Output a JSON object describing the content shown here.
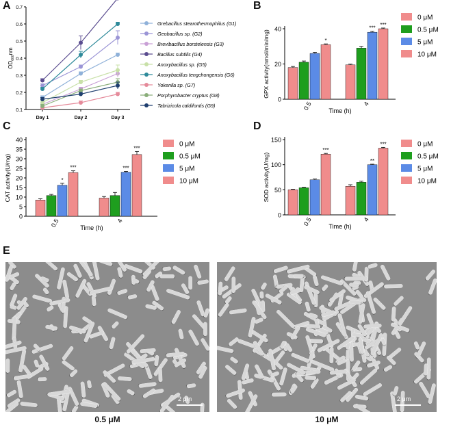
{
  "panels": {
    "A": "A",
    "B": "B",
    "C": "C",
    "D": "D",
    "E": "E"
  },
  "chart_data": [
    {
      "id": "A",
      "type": "line",
      "ylabel_main": "OD",
      "ylabel_sub": "600",
      "ylabel_tail": "nm",
      "categories": [
        "Day 1",
        "Day 2",
        "Day 3"
      ],
      "ylim": [
        0.1,
        0.7
      ],
      "yticks": [
        0.1,
        0.2,
        0.3,
        0.4,
        0.5,
        0.6,
        0.7
      ],
      "legend_position": "right",
      "series": [
        {
          "name": "Grebacillus stearothermophilus (G1)",
          "color": "#8fb1d9",
          "values": [
            0.17,
            0.31,
            0.42
          ],
          "err": [
            0.01,
            0.01,
            0.01
          ]
        },
        {
          "name": "Geobacillus sp. (G2)",
          "color": "#9b95d6",
          "values": [
            0.24,
            0.35,
            0.52
          ],
          "err": [
            0.01,
            0.01,
            0.04
          ]
        },
        {
          "name": "Brevibacillus borstelensis (G3)",
          "color": "#c9a0d6",
          "values": [
            0.13,
            0.22,
            0.31
          ],
          "err": [
            0.01,
            0.01,
            0.02
          ]
        },
        {
          "name": "Bacillus subtilis (G4)",
          "color": "#5a4c8f",
          "values": [
            0.27,
            0.49,
            0.75
          ],
          "err": [
            0.01,
            0.04,
            0.01
          ]
        },
        {
          "name": "Anoxybacillus sp. (G5)",
          "color": "#c8e0a8",
          "values": [
            0.14,
            0.26,
            0.33
          ],
          "err": [
            0.01,
            0.01,
            0.03
          ]
        },
        {
          "name": "Anoxybacillus tengchongensis (G6)",
          "color": "#2e8a9a",
          "values": [
            0.22,
            0.42,
            0.6
          ],
          "err": [
            0.01,
            0.02,
            0.01
          ]
        },
        {
          "name": "Yokenlla sp. (G7)",
          "color": "#e58a9a",
          "values": [
            0.11,
            0.14,
            0.19
          ],
          "err": [
            0.005,
            0.01,
            0.01
          ]
        },
        {
          "name": "Porphyrobacter cryptus (G8)",
          "color": "#8aae7a",
          "values": [
            0.12,
            0.21,
            0.26
          ],
          "err": [
            0.01,
            0.01,
            0.02
          ]
        },
        {
          "name": "Tabrizicola caldifontis (G9)",
          "color": "#1f3f6f",
          "values": [
            0.16,
            0.19,
            0.24
          ],
          "err": [
            0.01,
            0.01,
            0.02
          ]
        }
      ]
    },
    {
      "id": "B",
      "type": "bar",
      "ylabel": "GPX activity(nmol/min/mg)",
      "xlabel": "Time (h)",
      "categories": [
        "0.5",
        "4"
      ],
      "ylim": [
        0,
        40
      ],
      "yticks": [
        0,
        20,
        40
      ],
      "legend_position": "right",
      "series": [
        {
          "name": "0 μM",
          "color": "#f08c8c",
          "values": [
            18,
            19.5
          ],
          "err": [
            0.6,
            0.4
          ],
          "sig": [
            "",
            ""
          ]
        },
        {
          "name": "0.5 μM",
          "color": "#1e9e1e",
          "values": [
            21,
            29
          ],
          "err": [
            0.7,
            1.0
          ],
          "sig": [
            "",
            ""
          ]
        },
        {
          "name": "5 μM",
          "color": "#5b8be6",
          "values": [
            26,
            38
          ],
          "err": [
            0.6,
            0.6
          ],
          "sig": [
            "",
            "***"
          ]
        },
        {
          "name": "10 μM",
          "color": "#f08c8c",
          "values": [
            31,
            40
          ],
          "err": [
            0.4,
            0.4
          ],
          "sig": [
            "*",
            "***"
          ]
        }
      ]
    },
    {
      "id": "C",
      "type": "bar",
      "ylabel": "CAT activity(U/mg)",
      "xlabel": "Time (h)",
      "categories": [
        "0.5",
        "4"
      ],
      "ylim": [
        0,
        40
      ],
      "yticks": [
        0,
        5,
        10,
        15,
        20,
        25,
        30,
        35,
        40
      ],
      "legend_position": "right",
      "series": [
        {
          "name": "0 μM",
          "color": "#f08c8c",
          "values": [
            8.5,
            9.5
          ],
          "err": [
            0.6,
            0.8
          ],
          "sig": [
            "",
            ""
          ]
        },
        {
          "name": "0.5 μM",
          "color": "#1e9e1e",
          "values": [
            10.8,
            10.8
          ],
          "err": [
            0.6,
            1.6
          ],
          "sig": [
            "",
            ""
          ]
        },
        {
          "name": "5 μM",
          "color": "#5b8be6",
          "values": [
            16.2,
            23
          ],
          "err": [
            1.0,
            0.4
          ],
          "sig": [
            "*",
            "***"
          ]
        },
        {
          "name": "10 μM",
          "color": "#f08c8c",
          "values": [
            22.8,
            32.2
          ],
          "err": [
            0.9,
            1.6
          ],
          "sig": [
            "***",
            "***"
          ]
        }
      ]
    },
    {
      "id": "D",
      "type": "bar",
      "ylabel": "SOD activity(U/mg)",
      "xlabel": "Time (h)",
      "categories": [
        "0.5",
        "4"
      ],
      "ylim": [
        0,
        150
      ],
      "yticks": [
        0,
        50,
        100,
        150
      ],
      "legend_position": "right",
      "series": [
        {
          "name": "0 μM",
          "color": "#f08c8c",
          "values": [
            50,
            57
          ],
          "err": [
            1,
            3
          ],
          "sig": [
            "",
            ""
          ]
        },
        {
          "name": "0.5 μM",
          "color": "#1e9e1e",
          "values": [
            54,
            65
          ],
          "err": [
            1,
            2
          ],
          "sig": [
            "",
            ""
          ]
        },
        {
          "name": "5 μM",
          "color": "#5b8be6",
          "values": [
            70,
            100
          ],
          "err": [
            1.5,
            1
          ],
          "sig": [
            "",
            "**"
          ]
        },
        {
          "name": "10 μM",
          "color": "#f08c8c",
          "values": [
            121,
            133
          ],
          "err": [
            1.5,
            1.5
          ],
          "sig": [
            "***",
            "***"
          ]
        }
      ]
    }
  ],
  "sem": {
    "left_caption": "0.5 μM",
    "right_caption": "10 μM",
    "scalebar_left": "2 μm",
    "scalebar_right": "2 μm"
  }
}
